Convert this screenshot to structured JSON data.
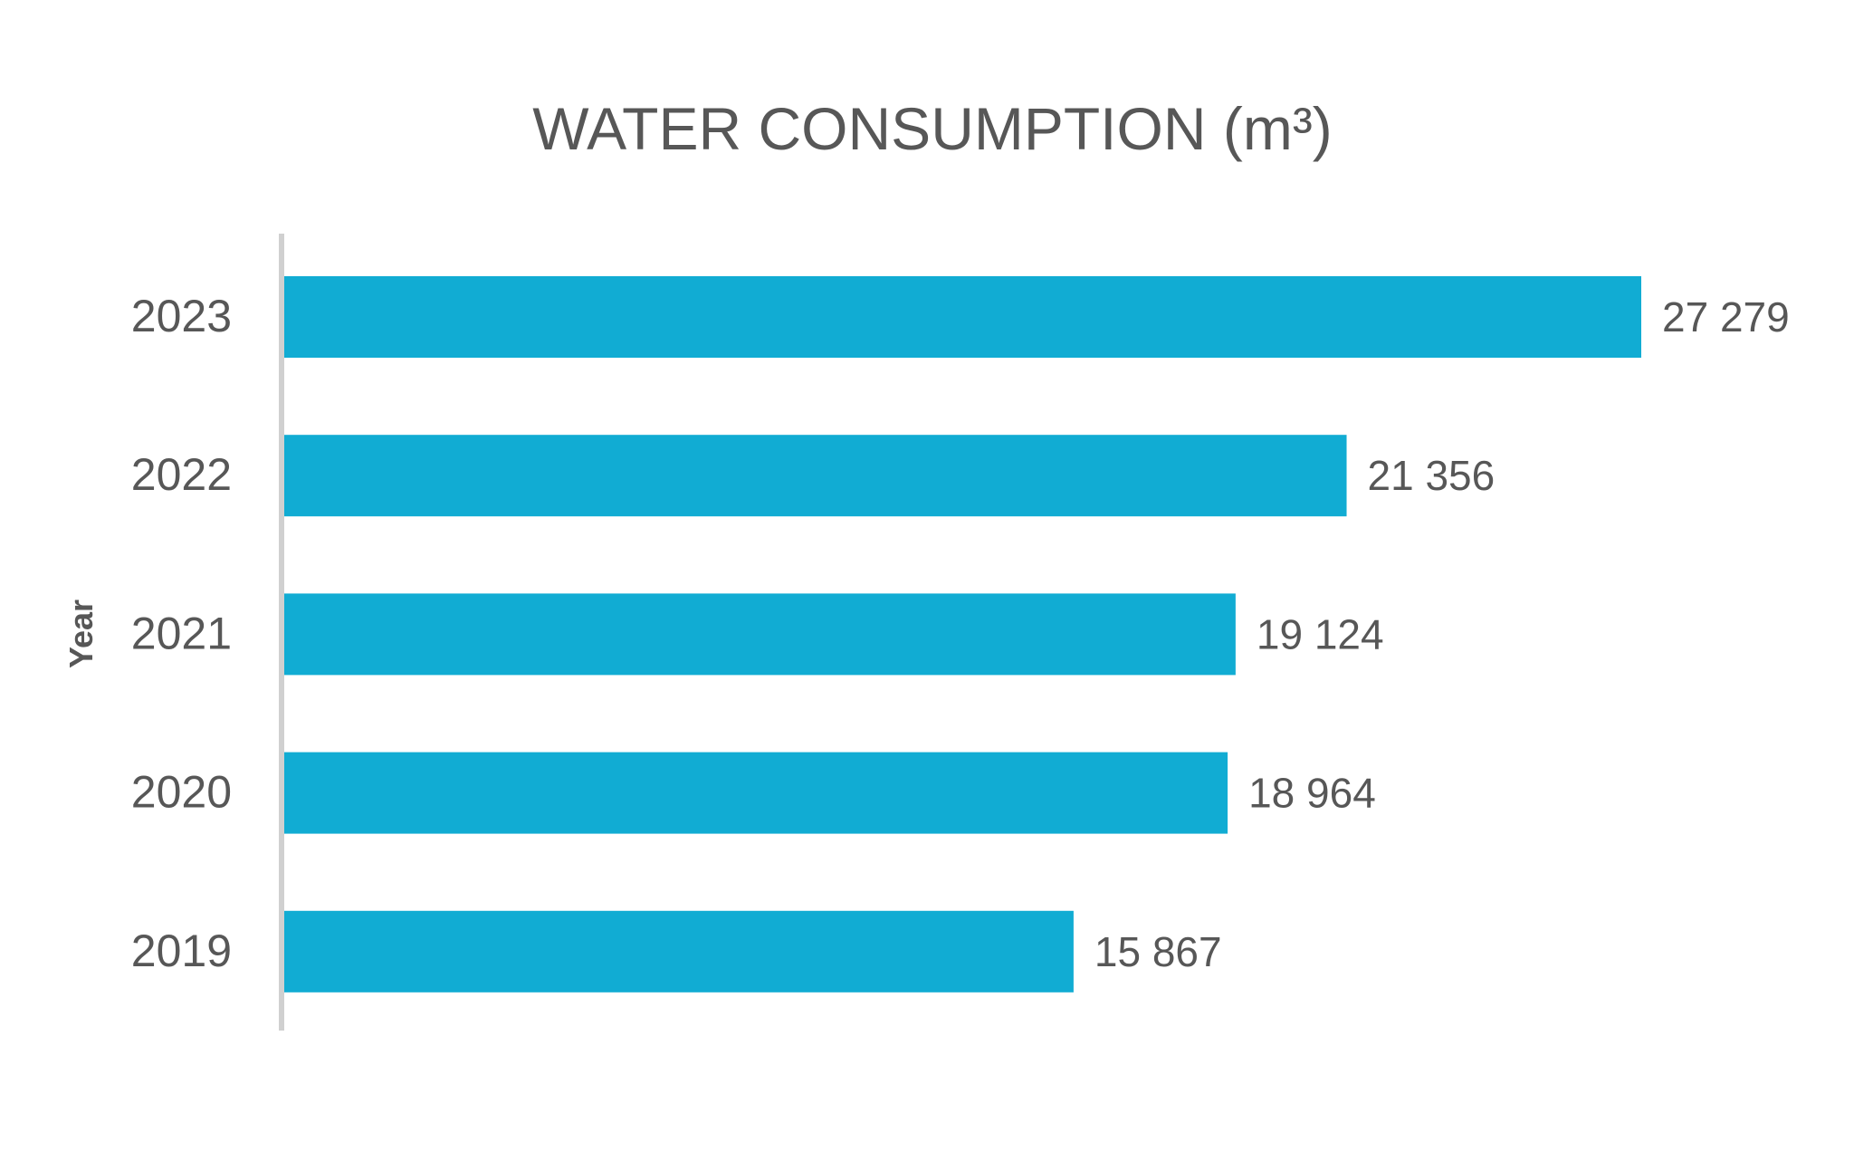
{
  "chart_data": {
    "type": "bar",
    "orientation": "horizontal",
    "title": "WATER CONSUMPTION (m³)",
    "xlabel": "",
    "ylabel": "Year",
    "categories": [
      "2023",
      "2022",
      "2021",
      "2020",
      "2019"
    ],
    "values": [
      27279,
      21356,
      19124,
      18964,
      15867
    ],
    "value_labels": [
      "27 279",
      "21 356",
      "19 124",
      "18 964",
      "15 867"
    ],
    "xlim": [
      0,
      27279
    ],
    "grid": false,
    "legend": "none",
    "colors": {
      "bar": "#11acd3",
      "text": "#575757",
      "axis": "#d0d0d0"
    }
  }
}
